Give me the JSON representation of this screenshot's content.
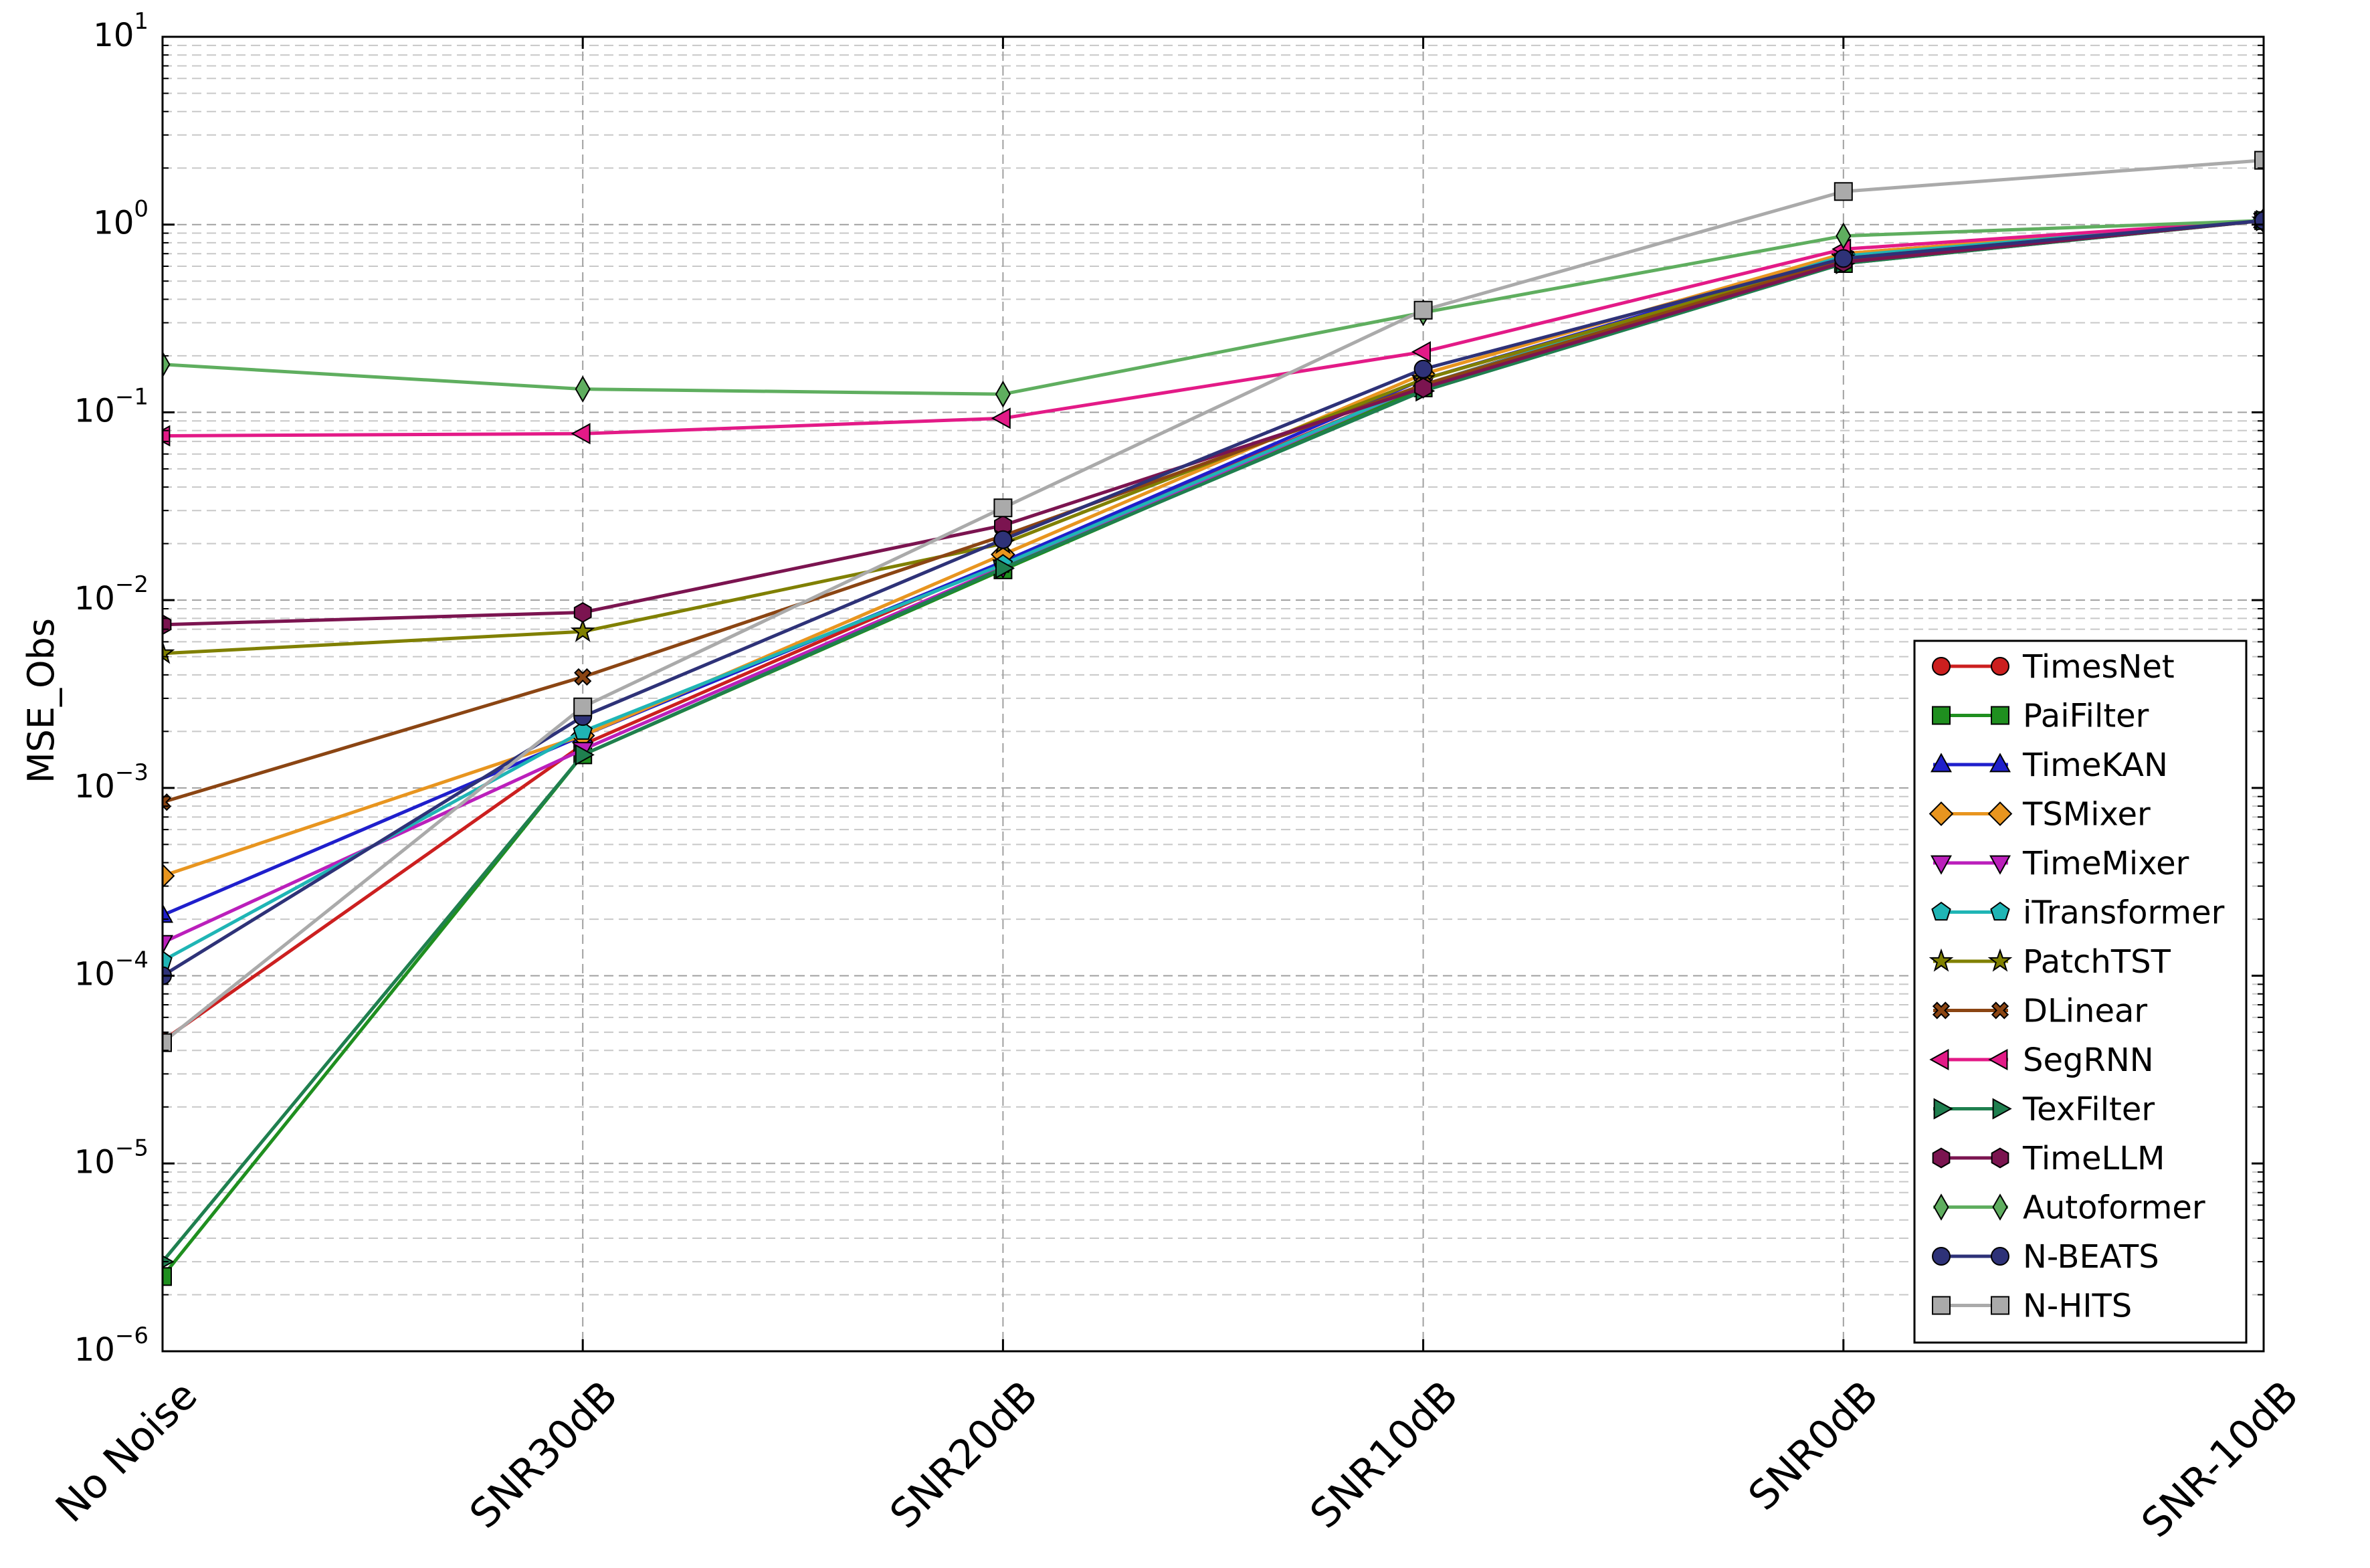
{
  "chart_data": {
    "type": "line",
    "title": "",
    "xlabel": "",
    "ylabel": "MSE_Obs",
    "yscale": "log",
    "ylim": [
      1e-06,
      10
    ],
    "yticks": [
      {
        "value": 1e-06,
        "base": "10",
        "exp": "−6"
      },
      {
        "value": 1e-05,
        "base": "10",
        "exp": "−5"
      },
      {
        "value": 0.0001,
        "base": "10",
        "exp": "−4"
      },
      {
        "value": 0.001,
        "base": "10",
        "exp": "−3"
      },
      {
        "value": 0.01,
        "base": "10",
        "exp": "−2"
      },
      {
        "value": 0.1,
        "base": "10",
        "exp": "−1"
      },
      {
        "value": 1,
        "base": "10",
        "exp": "0"
      },
      {
        "value": 10,
        "base": "10",
        "exp": "1"
      }
    ],
    "categories": [
      "No Noise",
      "SNR30dB",
      "SNR20dB",
      "SNR10dB",
      "SNR0dB",
      "SNR-10dB"
    ],
    "grid": "dashed horizontal and vertical",
    "legend_position": "lower-right",
    "series": [
      {
        "name": "TimesNet",
        "color": "#cc1f1f",
        "marker": "circle",
        "values": [
          4.5e-05,
          0.0017,
          0.016,
          0.14,
          0.7,
          1.05
        ]
      },
      {
        "name": "PaiFilter",
        "color": "#1f8f1f",
        "marker": "square",
        "values": [
          2.5e-06,
          0.0015,
          0.0145,
          0.135,
          0.62,
          1.05
        ]
      },
      {
        "name": "TimeKAN",
        "color": "#1f1fcc",
        "marker": "triangle-up",
        "values": [
          0.00021,
          0.0019,
          0.016,
          0.15,
          0.68,
          1.05
        ]
      },
      {
        "name": "TSMixer",
        "color": "#e8951f",
        "marker": "diamond",
        "values": [
          0.00034,
          0.0019,
          0.0175,
          0.16,
          0.7,
          1.05
        ]
      },
      {
        "name": "TimeMixer",
        "color": "#bb1fbb",
        "marker": "triangle-down",
        "values": [
          0.00015,
          0.0016,
          0.015,
          0.14,
          0.66,
          1.05
        ]
      },
      {
        "name": "iTransformer",
        "color": "#1fb5b5",
        "marker": "pentagon",
        "values": [
          0.00012,
          0.002,
          0.0155,
          0.14,
          0.68,
          1.05
        ]
      },
      {
        "name": "PatchTST",
        "color": "#808000",
        "marker": "star",
        "values": [
          0.0052,
          0.0068,
          0.02,
          0.15,
          0.66,
          1.05
        ]
      },
      {
        "name": "DLinear",
        "color": "#8b4513",
        "marker": "x",
        "values": [
          0.00084,
          0.0039,
          0.022,
          0.14,
          0.65,
          1.05
        ]
      },
      {
        "name": "SegRNN",
        "color": "#e31a87",
        "marker": "triangle-left",
        "values": [
          0.075,
          0.077,
          0.093,
          0.21,
          0.74,
          1.05
        ]
      },
      {
        "name": "TexFilter",
        "color": "#1f7f4f",
        "marker": "triangle-right",
        "values": [
          3e-06,
          0.0015,
          0.0148,
          0.13,
          0.62,
          1.05
        ]
      },
      {
        "name": "TimeLLM",
        "color": "#7b1450",
        "marker": "hexagon",
        "values": [
          0.0074,
          0.0086,
          0.025,
          0.135,
          0.63,
          1.05
        ]
      },
      {
        "name": "Autoformer",
        "color": "#5fae5f",
        "marker": "thin-diamond",
        "values": [
          0.18,
          0.133,
          0.125,
          0.34,
          0.87,
          1.05
        ]
      },
      {
        "name": "N-BEATS",
        "color": "#2e3278",
        "marker": "circle",
        "values": [
          0.0001,
          0.0024,
          0.021,
          0.17,
          0.66,
          1.05
        ]
      },
      {
        "name": "N-HITS",
        "color": "#aaaaaa",
        "marker": "square",
        "values": [
          4.4e-05,
          0.0027,
          0.031,
          0.35,
          1.5,
          2.2
        ]
      }
    ]
  }
}
